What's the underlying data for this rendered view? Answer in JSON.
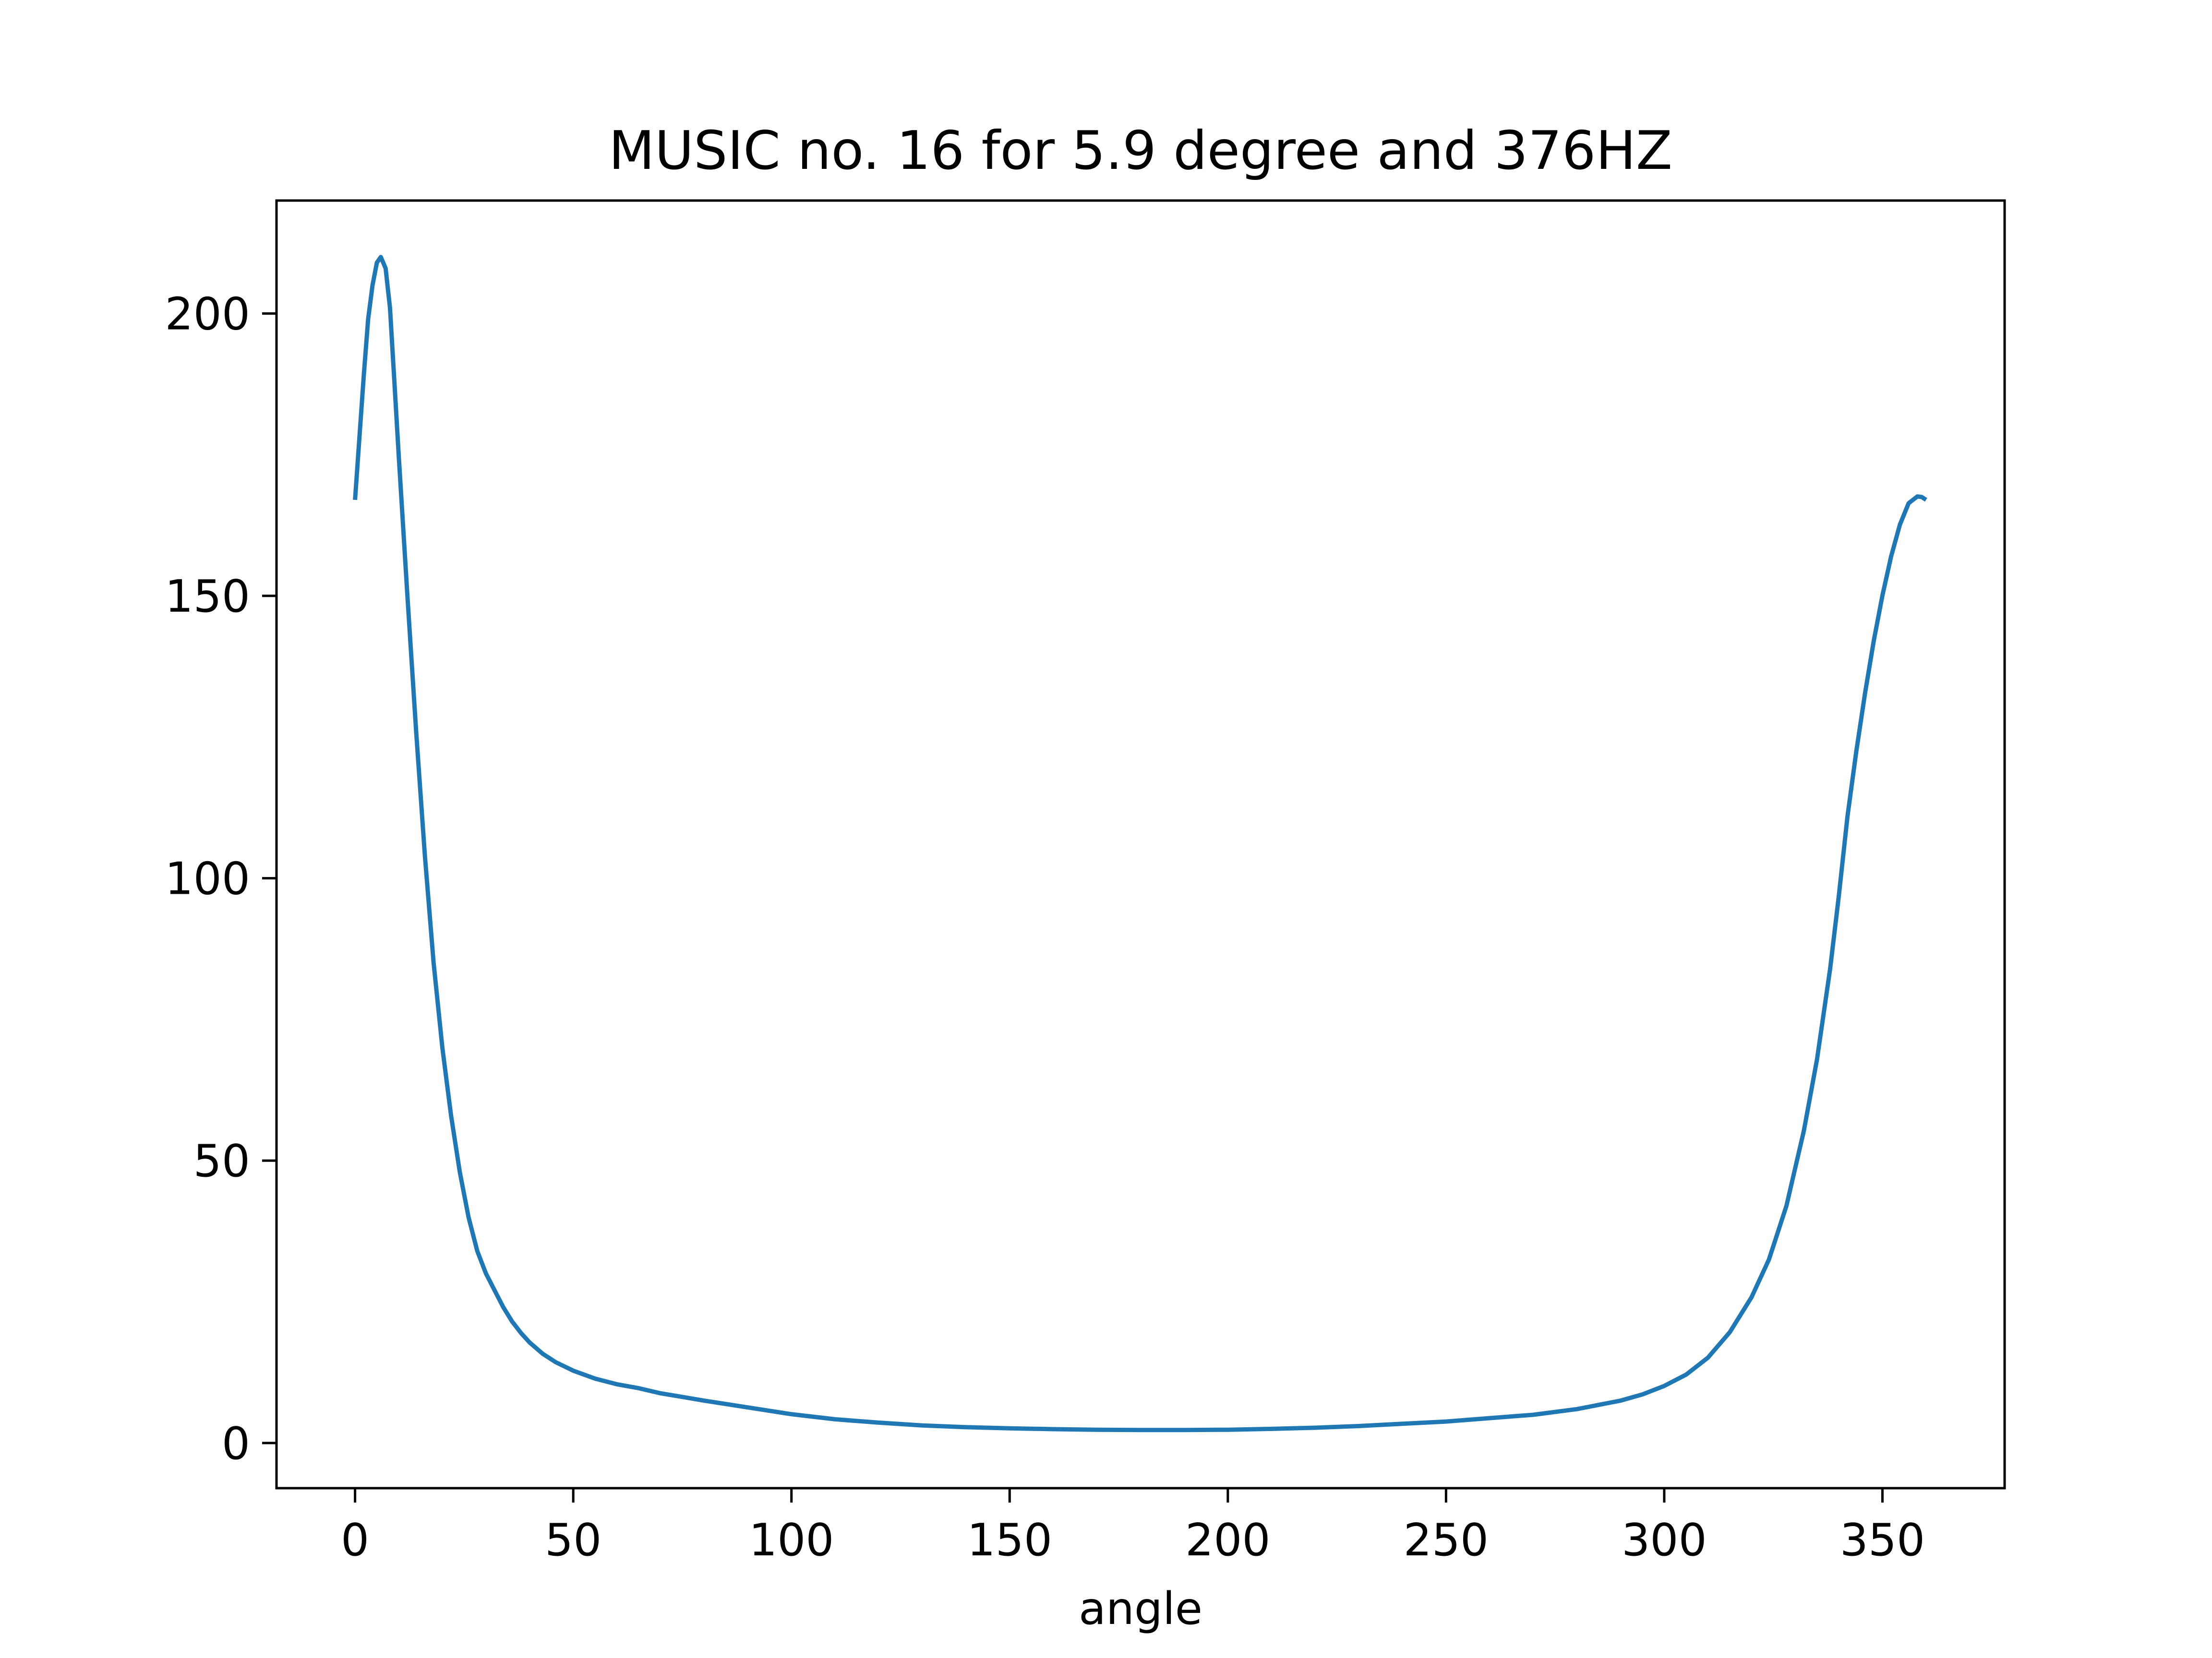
{
  "chart_data": {
    "type": "line",
    "title": "MUSIC no. 16 for 5.9 degree and 376HZ",
    "xlabel": "angle",
    "ylabel": "",
    "xlim": [
      -18,
      378
    ],
    "ylim": [
      -8,
      220
    ],
    "xticks": [
      0,
      50,
      100,
      150,
      200,
      250,
      300,
      350
    ],
    "yticks": [
      0,
      50,
      100,
      150,
      200
    ],
    "grid": false,
    "line_color": "#1f77b4",
    "series": [
      {
        "x": [
          0,
          1,
          2,
          3,
          4,
          5,
          5.9,
          7,
          8,
          9,
          10,
          12,
          14,
          16,
          18,
          20,
          22,
          24,
          26,
          28,
          30,
          32,
          34,
          36,
          38,
          40,
          43,
          46,
          50,
          55,
          60,
          65,
          70,
          80,
          90,
          100,
          110,
          120,
          130,
          140,
          150,
          160,
          170,
          180,
          186,
          190,
          200,
          210,
          220,
          230,
          240,
          250,
          260,
          270,
          280,
          290,
          295,
          300,
          305,
          310,
          315,
          320,
          324,
          328,
          332,
          335,
          338,
          340,
          342,
          344,
          346,
          348,
          350,
          352,
          354,
          356,
          358,
          359,
          360
        ],
        "y": [
          167,
          178,
          189,
          199,
          205,
          209,
          210,
          208,
          201,
          188,
          175,
          150,
          126,
          104,
          85,
          70,
          58,
          48,
          40,
          34,
          30,
          27,
          24,
          21.5,
          19.5,
          17.8,
          15.8,
          14.3,
          12.8,
          11.4,
          10.4,
          9.7,
          8.8,
          7.5,
          6.3,
          5.1,
          4.2,
          3.6,
          3.1,
          2.8,
          2.6,
          2.45,
          2.35,
          2.3,
          2.3,
          2.3,
          2.35,
          2.5,
          2.7,
          3.0,
          3.4,
          3.8,
          4.4,
          5.0,
          6.0,
          7.5,
          8.6,
          10.1,
          12.1,
          15.1,
          19.6,
          25.8,
          32.5,
          42,
          55.3,
          67.9,
          83.9,
          96.8,
          111,
          122.4,
          132.7,
          142,
          150.1,
          157,
          162.6,
          166.4,
          167.6,
          167.5,
          167
        ]
      }
    ]
  }
}
